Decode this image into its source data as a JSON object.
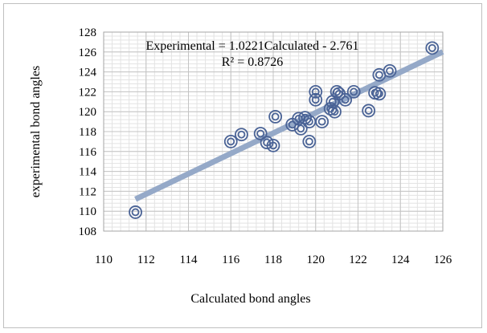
{
  "chart_data": {
    "type": "scatter",
    "xlabel": "Calculated bond angles",
    "ylabel": "experimental bond angles",
    "xlim": [
      110,
      126
    ],
    "ylim": [
      108,
      128
    ],
    "xticks": [
      "110",
      "112",
      "114",
      "116",
      "118",
      "120",
      "122",
      "124",
      "126"
    ],
    "yticks": [
      "108",
      "110",
      "112",
      "114",
      "116",
      "118",
      "120",
      "122",
      "124",
      "126",
      "128"
    ],
    "grid": true,
    "trendline": {
      "equation": "Experimental = 1.0221Calculated - 2.761",
      "r_squared": "R² = 0.8726",
      "slope": 1.0221,
      "intercept": -2.761,
      "x_range": [
        111.5,
        126
      ],
      "color": "#95a9c8"
    },
    "marker_color": "#4a6396",
    "points": [
      {
        "x": 111.5,
        "y": 109.9
      },
      {
        "x": 116.0,
        "y": 117.0
      },
      {
        "x": 116.5,
        "y": 117.7
      },
      {
        "x": 117.4,
        "y": 117.8
      },
      {
        "x": 117.7,
        "y": 116.9
      },
      {
        "x": 118.0,
        "y": 116.6
      },
      {
        "x": 118.1,
        "y": 119.5
      },
      {
        "x": 118.9,
        "y": 118.7
      },
      {
        "x": 119.2,
        "y": 119.3
      },
      {
        "x": 119.3,
        "y": 118.3
      },
      {
        "x": 119.5,
        "y": 119.4
      },
      {
        "x": 119.7,
        "y": 117.0
      },
      {
        "x": 119.7,
        "y": 119.0
      },
      {
        "x": 120.0,
        "y": 121.2
      },
      {
        "x": 120.0,
        "y": 122.0
      },
      {
        "x": 120.3,
        "y": 119.0
      },
      {
        "x": 120.7,
        "y": 120.3
      },
      {
        "x": 120.8,
        "y": 121.0
      },
      {
        "x": 120.9,
        "y": 120.0
      },
      {
        "x": 121.0,
        "y": 122.0
      },
      {
        "x": 121.1,
        "y": 121.8
      },
      {
        "x": 121.4,
        "y": 121.2
      },
      {
        "x": 121.8,
        "y": 122.0
      },
      {
        "x": 122.5,
        "y": 120.1
      },
      {
        "x": 122.8,
        "y": 121.9
      },
      {
        "x": 123.0,
        "y": 121.8
      },
      {
        "x": 123.0,
        "y": 123.7
      },
      {
        "x": 123.5,
        "y": 124.1
      },
      {
        "x": 125.5,
        "y": 126.4
      }
    ]
  }
}
